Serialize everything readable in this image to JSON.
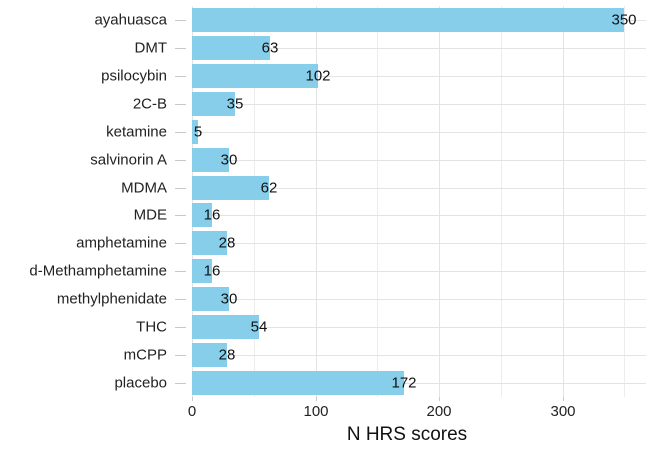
{
  "chart_data": {
    "type": "bar",
    "orientation": "horizontal",
    "title": "",
    "xlabel": "N HRS scores",
    "ylabel": "",
    "categories": [
      "ayahuasca",
      "DMT",
      "psilocybin",
      "2C-B",
      "ketamine",
      "salvinorin A",
      "MDMA",
      "MDE",
      "amphetamine",
      "d-Methamphetamine",
      "methylphenidate",
      "THC",
      "mCPP",
      "placebo"
    ],
    "values": [
      350,
      63,
      102,
      35,
      5,
      30,
      62,
      16,
      28,
      16,
      30,
      54,
      28,
      172
    ],
    "value_labels": [
      "350",
      "63",
      "102",
      "35",
      "5",
      "30",
      "62",
      "16",
      "28",
      "16",
      "30",
      "54",
      "28",
      "172"
    ],
    "xlim": [
      0,
      367.5
    ],
    "x_major_ticks": [
      0,
      100,
      200,
      300
    ],
    "x_major_tick_labels": [
      "0",
      "100",
      "200",
      "300"
    ],
    "x_minor_gridlines": [
      50,
      150,
      250,
      350
    ],
    "grid": true,
    "legend_position": "none",
    "colors": {
      "bar_fill": "#87CEEB",
      "grid_major": "#e3e3e3",
      "grid_minor": "#ededed",
      "axis_tick": "#c9c9c9",
      "label_text": "#111111",
      "axis_text": "#222222",
      "background": "#ffffff"
    }
  }
}
